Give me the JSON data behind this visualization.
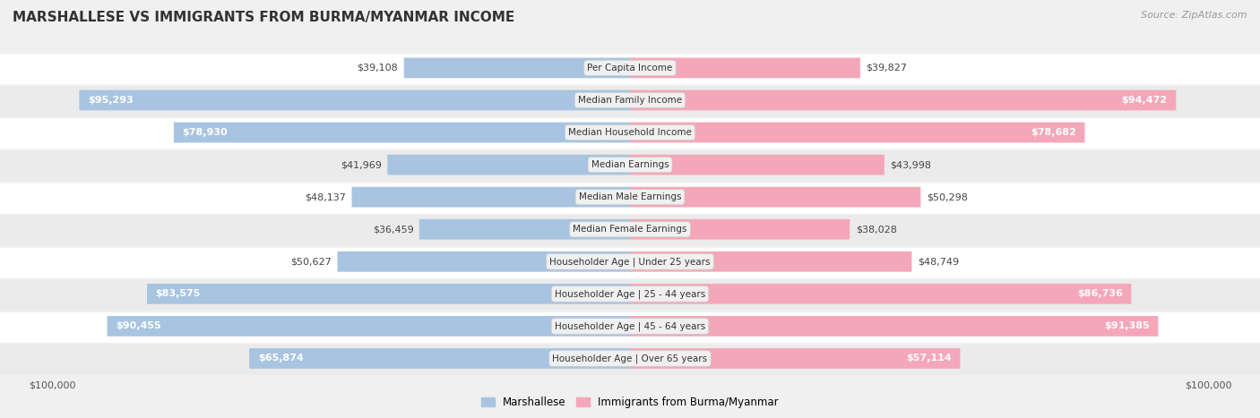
{
  "title": "MARSHALLESE VS IMMIGRANTS FROM BURMA/MYANMAR INCOME",
  "source": "Source: ZipAtlas.com",
  "categories": [
    "Per Capita Income",
    "Median Family Income",
    "Median Household Income",
    "Median Earnings",
    "Median Male Earnings",
    "Median Female Earnings",
    "Householder Age | Under 25 years",
    "Householder Age | 25 - 44 years",
    "Householder Age | 45 - 64 years",
    "Householder Age | Over 65 years"
  ],
  "marshallese_values": [
    39108,
    95293,
    78930,
    41969,
    48137,
    36459,
    50627,
    83575,
    90455,
    65874
  ],
  "burma_values": [
    39827,
    94472,
    78682,
    43998,
    50298,
    38028,
    48749,
    86736,
    91385,
    57114
  ],
  "marshallese_labels": [
    "$39,108",
    "$95,293",
    "$78,930",
    "$41,969",
    "$48,137",
    "$36,459",
    "$50,627",
    "$83,575",
    "$90,455",
    "$65,874"
  ],
  "burma_labels": [
    "$39,827",
    "$94,472",
    "$78,682",
    "$43,998",
    "$50,298",
    "$38,028",
    "$48,749",
    "$86,736",
    "$91,385",
    "$57,114"
  ],
  "max_value": 100000,
  "marshallese_color": "#a8c4e0",
  "burma_color": "#f4a7b9",
  "bg_color": "#f0f0f0",
  "row_bg_even": "#ffffff",
  "row_bg_odd": "#ebebeb",
  "label_box_color": "#f2f2f2",
  "xlabel_left": "$100,000",
  "xlabel_right": "$100,000",
  "legend_marshallese": "Marshallese",
  "legend_burma": "Immigrants from Burma/Myanmar",
  "title_fontsize": 11,
  "source_fontsize": 8,
  "bar_label_fontsize": 8,
  "category_fontsize": 7.5,
  "legend_fontsize": 8.5,
  "axis_fontsize": 8,
  "inside_label_threshold": 55000
}
